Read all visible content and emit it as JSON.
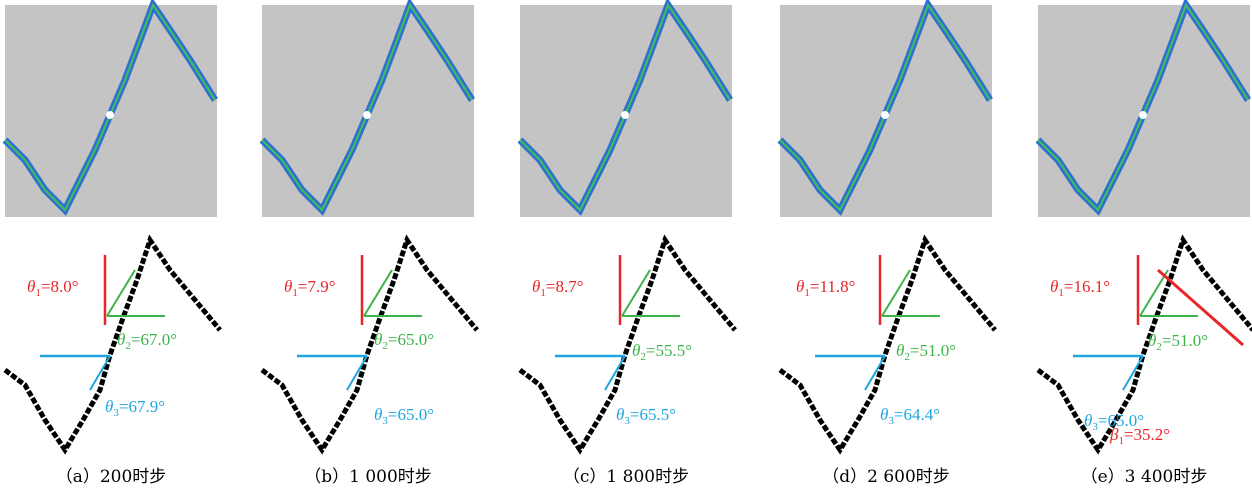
{
  "panels": [
    {
      "caption": "（a）200时步",
      "labels": [
        {
          "symbol": "θ",
          "sub": "1",
          "text": "=8.0°",
          "color": "#e8262a"
        },
        {
          "symbol": "θ",
          "sub": "2",
          "text": "=67.0°",
          "color": "#3db34a"
        },
        {
          "symbol": "θ",
          "sub": "3",
          "text": "=67.9°",
          "color": "#1fa6e0"
        }
      ]
    },
    {
      "caption": "（b）1 000时步",
      "labels": [
        {
          "symbol": "θ",
          "sub": "1",
          "text": "=7.9°",
          "color": "#e8262a"
        },
        {
          "symbol": "θ",
          "sub": "2",
          "text": "=65.0°",
          "color": "#3db34a"
        },
        {
          "symbol": "θ",
          "sub": "3",
          "text": "=65.0°",
          "color": "#1fa6e0"
        }
      ]
    },
    {
      "caption": "（c）1 800时步",
      "labels": [
        {
          "symbol": "θ",
          "sub": "1",
          "text": "=8.7°",
          "color": "#e8262a"
        },
        {
          "symbol": "θ",
          "sub": "2",
          "text": "=55.5°",
          "color": "#3db34a"
        },
        {
          "symbol": "θ",
          "sub": "3",
          "text": "=65.5°",
          "color": "#1fa6e0"
        }
      ]
    },
    {
      "caption": "（d）2 600时步",
      "labels": [
        {
          "symbol": "θ",
          "sub": "1",
          "text": "=11.8°",
          "color": "#e8262a"
        },
        {
          "symbol": "θ",
          "sub": "2",
          "text": "=51.0°",
          "color": "#3db34a"
        },
        {
          "symbol": "θ",
          "sub": "3",
          "text": "=64.4°",
          "color": "#1fa6e0"
        }
      ]
    },
    {
      "caption": "（e）3 400时步",
      "labels": [
        {
          "symbol": "θ",
          "sub": "1",
          "text": "=16.1°",
          "color": "#e8262a"
        },
        {
          "symbol": "θ",
          "sub": "2",
          "text": "=51.0°",
          "color": "#3db34a"
        },
        {
          "symbol": "β",
          "sub": "1",
          "text": "=35.2°",
          "color": "#e8262a"
        },
        {
          "symbol": "θ",
          "sub": "3",
          "text": "=65.0°",
          "color": "#1fa6e0"
        }
      ]
    }
  ]
}
